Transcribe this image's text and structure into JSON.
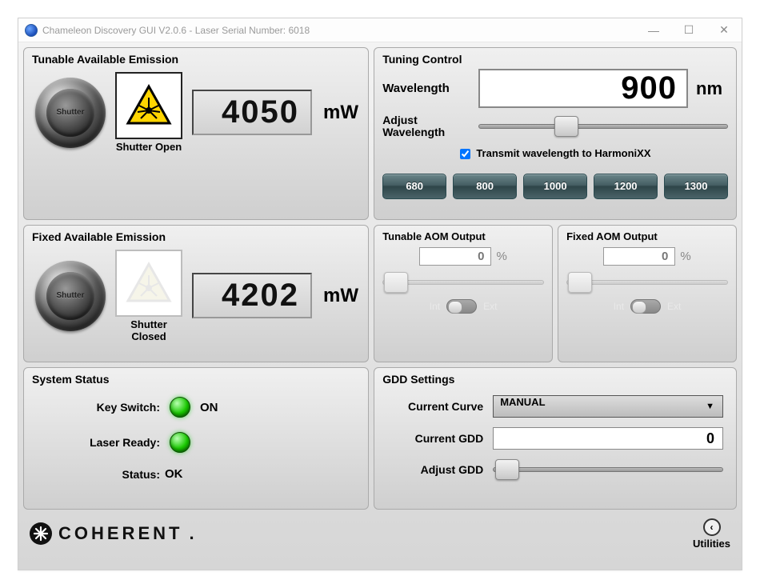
{
  "window": {
    "title": "Chameleon Discovery GUI V2.0.6 - Laser Serial Number: 6018"
  },
  "tunable_emission": {
    "title": "Tunable Available Emission",
    "shutter_label": "Shutter",
    "shutter_state": "Shutter Open",
    "power_value": "4050",
    "power_unit": "mW",
    "warning_active": true
  },
  "fixed_emission": {
    "title": "Fixed Available Emission",
    "shutter_label": "Shutter",
    "shutter_state": "Shutter Closed",
    "power_value": "4202",
    "power_unit": "mW",
    "warning_active": false
  },
  "tuning_control": {
    "title": "Tuning Control",
    "wavelength_label": "Wavelength",
    "wavelength_value": "900",
    "wavelength_unit": "nm",
    "adjust_label": "Adjust Wavelength",
    "slider_percent": 35,
    "transmit_checked": true,
    "transmit_label": "Transmit wavelength to HarmoniXX",
    "presets": [
      "680",
      "800",
      "1000",
      "1200",
      "1300"
    ]
  },
  "aom_tunable": {
    "title": "Tunable AOM Output",
    "value": "0",
    "unit": "%",
    "int_label": "Int",
    "ext_label": "Ext"
  },
  "aom_fixed": {
    "title": "Fixed AOM Output",
    "value": "0",
    "unit": "%",
    "int_label": "Int",
    "ext_label": "Ext"
  },
  "system_status": {
    "title": "System Status",
    "key_label": "Key Switch:",
    "key_value": "ON",
    "ready_label": "Laser Ready:",
    "status_label": "Status:",
    "status_value": "OK"
  },
  "gdd": {
    "title": "GDD Settings",
    "curve_label": "Current Curve",
    "curve_value": "MANUAL",
    "gdd_label": "Current GDD",
    "gdd_value": "0",
    "adjust_label": "Adjust GDD"
  },
  "footer": {
    "brand": "COHERENT",
    "utilities_label": "Utilities"
  },
  "colors": {
    "panel_bg_top": "#f0f0f0",
    "panel_bg_bottom": "#cfcfcf",
    "preset_btn": "#476367",
    "led_green": "#19c900",
    "warning_yellow": "#ffd500"
  }
}
